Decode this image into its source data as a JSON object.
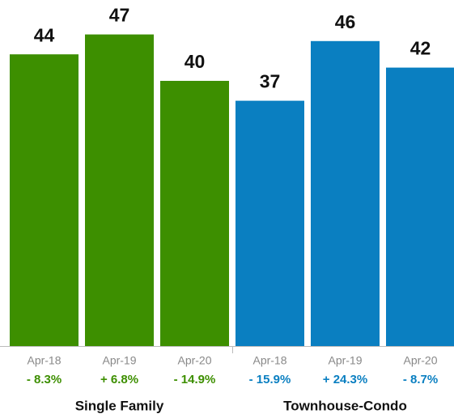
{
  "chart_data": {
    "type": "bar",
    "series": [
      {
        "name": "Single Family",
        "color": "#3d8f00",
        "categories": [
          "Apr-18",
          "Apr-19",
          "Apr-20"
        ],
        "values": [
          44,
          47,
          40
        ],
        "change_labels": [
          "- 8.3%",
          "+ 6.8%",
          "- 14.9%"
        ]
      },
      {
        "name": "Townhouse-Condo",
        "color": "#0a7fc1",
        "categories": [
          "Apr-18",
          "Apr-19",
          "Apr-20"
        ],
        "values": [
          37,
          46,
          42
        ],
        "change_labels": [
          "- 15.9%",
          "+ 24.3%",
          "- 8.7%"
        ]
      }
    ]
  }
}
